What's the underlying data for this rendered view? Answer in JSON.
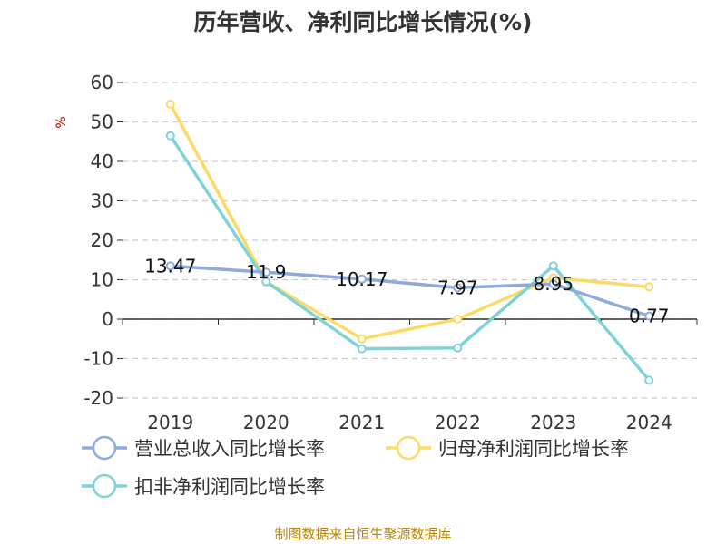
{
  "chart_data": {
    "type": "line",
    "title": "历年营收、净利同比增长情况(%)",
    "ylabel": "%",
    "xlabel": "",
    "ylim": [
      -20,
      60
    ],
    "yticks": [
      60,
      50,
      40,
      30,
      20,
      10,
      0,
      -10,
      -20
    ],
    "grid": true,
    "legend_position": "bottom",
    "categories": [
      "2019",
      "2020",
      "2021",
      "2022",
      "2023",
      "2024"
    ],
    "series": [
      {
        "name": "营业总收入同比增长率",
        "color": "#8faadc",
        "values": [
          13.47,
          11.9,
          10.17,
          7.97,
          8.95,
          0.77
        ],
        "labels": [
          "13.47",
          "11.9",
          "10.17",
          "7.97",
          "8.95",
          "0.77"
        ]
      },
      {
        "name": "归母净利润同比增长率",
        "color": "#ffd966",
        "values": [
          54.5,
          9.5,
          -5.0,
          0.0,
          10.5,
          8.2
        ]
      },
      {
        "name": "扣非净利润同比增长率",
        "color": "#7dd3d8",
        "values": [
          46.5,
          9.5,
          -7.5,
          -7.3,
          13.5,
          -15.5
        ]
      }
    ],
    "source": "制图数据来自恒生聚源数据库"
  }
}
